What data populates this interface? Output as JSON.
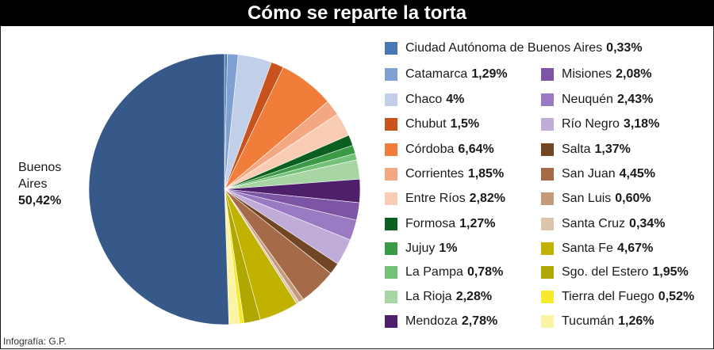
{
  "header": {
    "title": "Cómo se reparte la torta"
  },
  "credit": "Infografía: G.P.",
  "big_label": {
    "name_line1": "Buenos",
    "name_line2": "Aires",
    "value": "50,42%"
  },
  "chart_data": {
    "type": "pie",
    "title": "Cómo se reparte la torta",
    "unit": "%",
    "slices": [
      {
        "name": "Ciudad Autónoma de Buenos Aires",
        "value": 0.33,
        "label": "0,33%",
        "color": "#4a78b5"
      },
      {
        "name": "Catamarca",
        "value": 1.29,
        "label": "1,29%",
        "color": "#7fa0d2"
      },
      {
        "name": "Chaco",
        "value": 4,
        "label": "4%",
        "color": "#c1cfe8"
      },
      {
        "name": "Chubut",
        "value": 1.5,
        "label": "1,5%",
        "color": "#c8531d"
      },
      {
        "name": "Córdoba",
        "value": 6.64,
        "label": "6,64%",
        "color": "#f07d3a"
      },
      {
        "name": "Corrientes",
        "value": 1.85,
        "label": "1,85%",
        "color": "#f4a882"
      },
      {
        "name": "Entre Ríos",
        "value": 2.82,
        "label": "2,82%",
        "color": "#f8cdb3"
      },
      {
        "name": "Formosa",
        "value": 1.27,
        "label": "1,27%",
        "color": "#0b5f20"
      },
      {
        "name": "Jujuy",
        "value": 1,
        "label": "1%",
        "color": "#3a9a45"
      },
      {
        "name": "La Pampa",
        "value": 0.78,
        "label": "0,78%",
        "color": "#74c277"
      },
      {
        "name": "La Rioja",
        "value": 2.28,
        "label": "2,28%",
        "color": "#a7d5a3"
      },
      {
        "name": "Mendoza",
        "value": 2.78,
        "label": "2,78%",
        "color": "#4e1f6b"
      },
      {
        "name": "Misiones",
        "value": 2.08,
        "label": "2,08%",
        "color": "#7d55a5"
      },
      {
        "name": "Neuquén",
        "value": 2.43,
        "label": "2,43%",
        "color": "#9a7bc3"
      },
      {
        "name": "Río Negro",
        "value": 3.18,
        "label": "3,18%",
        "color": "#c0acd8"
      },
      {
        "name": "Salta",
        "value": 1.37,
        "label": "1,37%",
        "color": "#704624"
      },
      {
        "name": "San Juan",
        "value": 4.45,
        "label": "4,45%",
        "color": "#a56a48"
      },
      {
        "name": "San Luis",
        "value": 0.6,
        "label": "0,60%",
        "color": "#c49b7a"
      },
      {
        "name": "Santa Cruz",
        "value": 0.34,
        "label": "0,34%",
        "color": "#ddc4ae"
      },
      {
        "name": "Santa Fe",
        "value": 4.67,
        "label": "4,67%",
        "color": "#c2b200"
      },
      {
        "name": "Sgo. del Estero",
        "value": 1.95,
        "label": "1,95%",
        "color": "#b0a800"
      },
      {
        "name": "Tierra del Fuego",
        "value": 0.52,
        "label": "0,52%",
        "color": "#f6ea2a"
      },
      {
        "name": "Tucumán",
        "value": 1.26,
        "label": "1,26%",
        "color": "#fbf4a4"
      },
      {
        "name": "Buenos Aires",
        "value": 50.42,
        "label": "50,42%",
        "color": "#37598a"
      }
    ]
  }
}
